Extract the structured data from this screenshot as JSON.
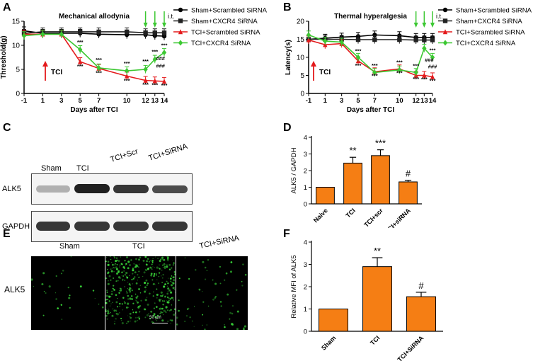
{
  "panels": {
    "A": "A",
    "B": "B",
    "C": "C",
    "D": "D",
    "E": "E",
    "F": "F"
  },
  "it_label": "i.t.",
  "tci_arrow_label": "TCI",
  "colors": {
    "sham_scr": "#000000",
    "sham_cxcr4": "#222222",
    "tci_scr": "#e41a1c",
    "tci_cxcr4": "#3cc832",
    "bar_fill": "#f57e14",
    "arrow_red": "#e41a1c",
    "arrow_green": "#3cc832",
    "fluor_green": "#39d639"
  },
  "chart_data": [
    {
      "id": "A",
      "type": "line",
      "title": "Mechanical allodynia",
      "xlabel": "Days after TCI",
      "ylabel": "Threshold(g)",
      "xticks": [
        -1,
        1,
        3,
        5,
        7,
        10,
        12,
        13,
        14
      ],
      "yticks": [
        0,
        5,
        10,
        15
      ],
      "ylim": [
        0,
        15
      ],
      "series": [
        {
          "name": "Sham+Scrambled SiRNA",
          "color": "#000000",
          "marker": "circle",
          "values": [
            13.0,
            12.5,
            12.5,
            12.5,
            12.3,
            12.2,
            12.2,
            12.0,
            11.9
          ]
        },
        {
          "name": "Sham+CXCR4 SiRNA",
          "color": "#222222",
          "marker": "square",
          "values": [
            12.5,
            12.8,
            12.8,
            12.8,
            12.8,
            12.8,
            12.6,
            12.6,
            12.6
          ]
        },
        {
          "name": "TCI+Scrambled SiRNA",
          "color": "#e41a1c",
          "marker": "triangle",
          "values": [
            12.3,
            12.3,
            12.3,
            6.6,
            5.2,
            3.6,
            2.7,
            2.6,
            2.5
          ]
        },
        {
          "name": "TCI+CXCR4 SiRNA",
          "color": "#3cc832",
          "marker": "diamond",
          "values": [
            12.0,
            12.3,
            12.3,
            9.1,
            5.3,
            4.7,
            5.0,
            7.1,
            8.5
          ]
        }
      ],
      "annotations": [
        {
          "text": "***",
          "x": 5,
          "y": 10.3
        },
        {
          "text": "***",
          "x": 5,
          "y": 5.3
        },
        {
          "text": "***",
          "x": 7,
          "y": 6.6
        },
        {
          "text": "***",
          "x": 7,
          "y": 3.9
        },
        {
          "text": "***",
          "x": 10,
          "y": 5.9
        },
        {
          "text": "***",
          "x": 10,
          "y": 2.3
        },
        {
          "text": "***",
          "x": 12,
          "y": 6.3
        },
        {
          "text": "***",
          "x": 12,
          "y": 1.5
        },
        {
          "text": "***",
          "x": 13,
          "y": 8.3
        },
        {
          "text": "***",
          "x": 13,
          "y": 1.4
        },
        {
          "text": "***",
          "x": 14,
          "y": 9.6
        },
        {
          "text": "***",
          "x": 14,
          "y": 1.3
        },
        {
          "text": "###",
          "x": 13.6,
          "y": 6.9
        },
        {
          "text": "###",
          "x": 13.6,
          "y": 5.4
        }
      ]
    },
    {
      "id": "B",
      "type": "line",
      "title": "Thermal hyperalgesia",
      "xlabel": "Days after TCI",
      "ylabel": "Latency(s)",
      "xticks": [
        -1,
        1,
        3,
        5,
        7,
        10,
        12,
        13,
        14
      ],
      "yticks": [
        0,
        5,
        10,
        15,
        20
      ],
      "ylim": [
        0,
        20
      ],
      "series": [
        {
          "name": "Sham+Scrambled SiRNA",
          "color": "#000000",
          "marker": "circle",
          "values": [
            15.0,
            15.3,
            15.6,
            15.8,
            16.2,
            16.0,
            15.5,
            15.5,
            15.5
          ]
        },
        {
          "name": "Sham+CXCR4 SiRNA",
          "color": "#222222",
          "marker": "square",
          "values": [
            15.0,
            15.0,
            15.0,
            14.9,
            14.9,
            14.9,
            14.8,
            14.8,
            14.8
          ]
        },
        {
          "name": "TCI+Scrambled SiRNA",
          "color": "#e41a1c",
          "marker": "triangle",
          "values": [
            14.8,
            13.5,
            13.8,
            9.0,
            6.0,
            6.8,
            5.0,
            5.0,
            4.6
          ]
        },
        {
          "name": "TCI+CXCR4 SiRNA",
          "color": "#3cc832",
          "marker": "diamond",
          "values": [
            16.2,
            14.5,
            14.2,
            10.0,
            5.8,
            6.5,
            5.8,
            12.5,
            10.0
          ]
        }
      ],
      "annotations": [
        {
          "text": "***",
          "x": 5,
          "y": 11.3
        },
        {
          "text": "***",
          "x": 5,
          "y": 7.3
        },
        {
          "text": "***",
          "x": 7,
          "y": 7.3
        },
        {
          "text": "***",
          "x": 7,
          "y": 4.4
        },
        {
          "text": "***",
          "x": 10,
          "y": 8.1
        },
        {
          "text": "***",
          "x": 10,
          "y": 5.2
        },
        {
          "text": "***",
          "x": 12,
          "y": 7.2
        },
        {
          "text": "***",
          "x": 12,
          "y": 3.5
        },
        {
          "text": "***",
          "x": 13,
          "y": 3.4
        },
        {
          "text": "***",
          "x": 14,
          "y": 11.5
        },
        {
          "text": "***",
          "x": 14,
          "y": 3.0
        },
        {
          "text": "###",
          "x": 13.6,
          "y": 8.7
        },
        {
          "text": "###",
          "x": 14,
          "y": 7.0
        }
      ]
    },
    {
      "id": "D",
      "type": "bar",
      "ylabel": "ALK5 / GAPDH",
      "categories": [
        "Naive",
        "TCI",
        "TCI+scr",
        "TCI+siRNA"
      ],
      "values": [
        1.0,
        2.45,
        2.9,
        1.32
      ],
      "errors": [
        0,
        0.35,
        0.35,
        0.1
      ],
      "ylim": [
        0,
        4
      ],
      "yticks": [
        0,
        1,
        2,
        3,
        4
      ],
      "labels": [
        "",
        "**",
        "***",
        "#"
      ]
    },
    {
      "id": "F",
      "type": "bar",
      "ylabel": "Relative MFI of ALK5",
      "categories": [
        "Sham",
        "TCI",
        "TCI+SiRNA"
      ],
      "values": [
        1.0,
        2.9,
        1.55
      ],
      "errors": [
        0,
        0.4,
        0.2
      ],
      "ylim": [
        0,
        4
      ],
      "yticks": [
        0,
        1,
        2,
        3,
        4
      ],
      "labels": [
        "",
        "**",
        "#"
      ]
    }
  ],
  "blot": {
    "lanes": [
      "Sham",
      "TCI",
      "TCI+Scr",
      "TCI+SiRNA"
    ],
    "rows": [
      "ALK5",
      "GAPDH"
    ],
    "alk5_intensity": [
      0.3,
      0.95,
      0.85,
      0.75
    ],
    "gapdh_intensity": [
      0.85,
      0.85,
      0.85,
      0.85
    ]
  },
  "micro": {
    "titles": [
      "Sham",
      "TCI",
      "TCI+SiRNA"
    ],
    "row_label": "ALK5",
    "scale_bar": "50 μm",
    "signal_density": [
      0.05,
      0.8,
      0.12
    ]
  }
}
